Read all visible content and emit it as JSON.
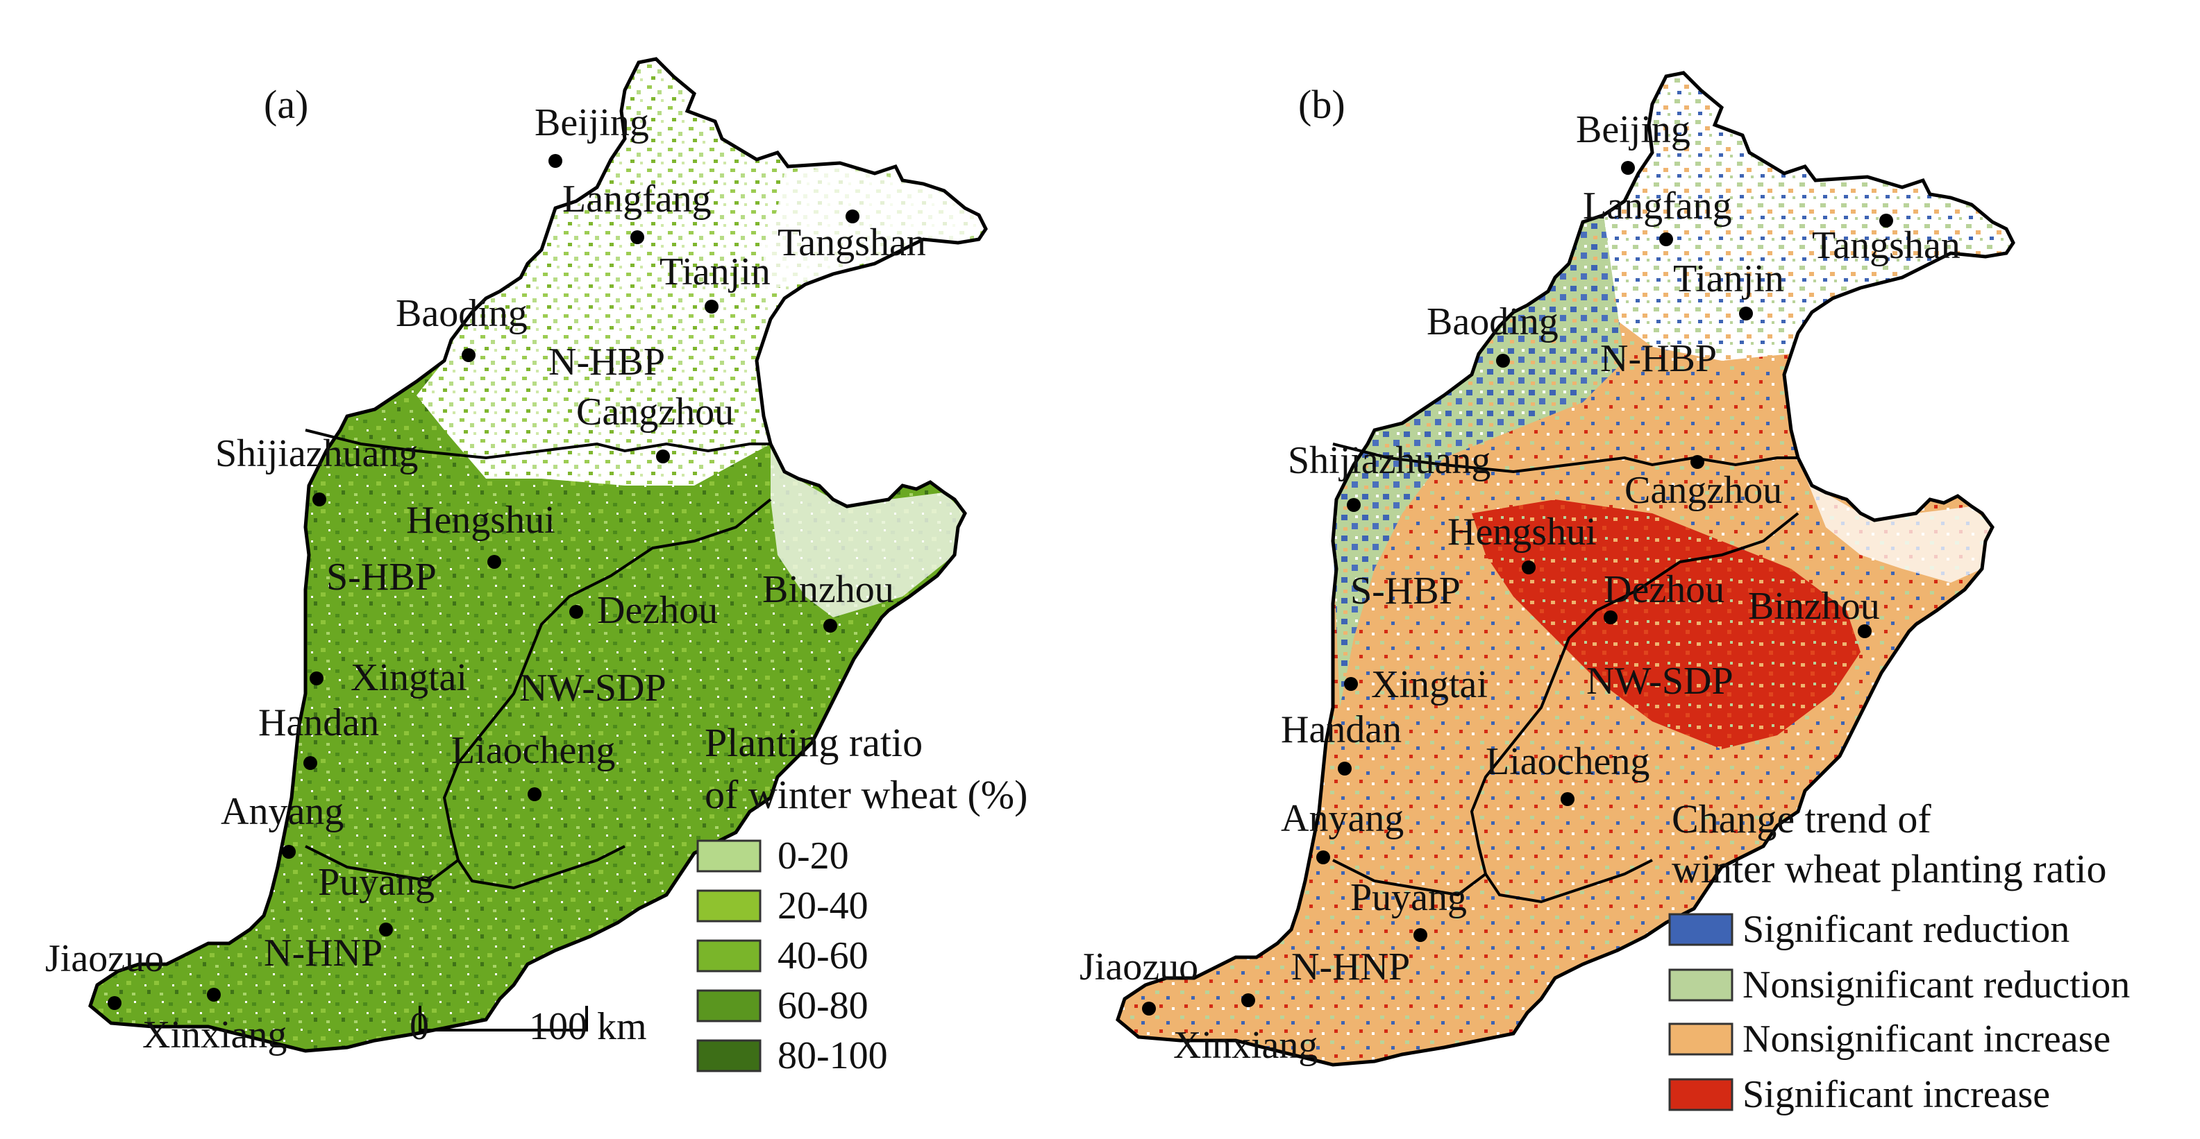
{
  "panel_a": {
    "label": "(a)",
    "legend": {
      "title_line1": "Planting ratio",
      "title_line2": "of winter wheat (%)",
      "items": [
        {
          "label": "0-20",
          "color": "#b5d98a"
        },
        {
          "label": "20-40",
          "color": "#8fc22f"
        },
        {
          "label": "40-60",
          "color": "#7ab52a"
        },
        {
          "label": "60-80",
          "color": "#5a961f"
        },
        {
          "label": "80-100",
          "color": "#3d6e17"
        }
      ]
    },
    "scalebar": {
      "start": "0",
      "end": "100 km"
    },
    "cities": {
      "beijing": "Beijing",
      "langfang": "Langfang",
      "tangshan": "Tangshan",
      "tianjin": "Tianjin",
      "baoding": "Baoding",
      "cangzhou": "Cangzhou",
      "shijiazhuang": "Shijiazhuang",
      "hengshui": "Hengshui",
      "dezhou": "Dezhou",
      "binzhou": "Binzhou",
      "xingtai": "Xingtai",
      "handan": "Handan",
      "liaocheng": "Liaocheng",
      "anyang": "Anyang",
      "puyang": "Puyang",
      "jiaozuo": "Jiaozuo",
      "xinxiang": "Xinxiang"
    },
    "regions": {
      "nhbp": "N-HBP",
      "shbp": "S-HBP",
      "nwsdp": "NW-SDP",
      "nhnp": "N-HNP"
    }
  },
  "panel_b": {
    "label": "(b)",
    "legend": {
      "title_line1": "Change trend of",
      "title_line2": "winter wheat planting ratio",
      "items": [
        {
          "label": "Significant reduction",
          "color": "#3e64b4"
        },
        {
          "label": "Nonsignificant reduction",
          "color": "#b9d39a"
        },
        {
          "label": "Nonsignificant increase",
          "color": "#f0b46e"
        },
        {
          "label": "Significant increase",
          "color": "#d42a14"
        }
      ]
    },
    "cities": {
      "beijing": "Beijing",
      "langfang": "Langfang",
      "tangshan": "Tangshan",
      "tianjin": "Tianjin",
      "baoding": "Baoding",
      "cangzhou": "Cangzhou",
      "shijiazhuang": "Shijiazhuang",
      "hengshui": "Hengshui",
      "dezhou": "Dezhou",
      "binzhou": "Binzhou",
      "xingtai": "Xingtai",
      "handan": "Handan",
      "liaocheng": "Liaocheng",
      "anyang": "Anyang",
      "puyang": "Puyang",
      "jiaozuo": "Jiaozuo",
      "xinxiang": "Xinxiang"
    },
    "regions": {
      "nhbp": "N-HBP",
      "shbp": "S-HBP",
      "nwsdp": "NW-SDP",
      "nhnp": "N-HNP"
    }
  }
}
